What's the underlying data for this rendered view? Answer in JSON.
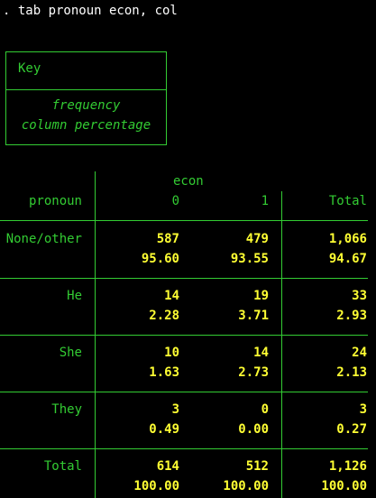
{
  "command": ". tab pronoun econ, col",
  "key": {
    "title": "Key",
    "line1": "frequency",
    "line2": "column percentage"
  },
  "table": {
    "col_var": "econ",
    "row_var": "pronoun",
    "col_headers": [
      "0",
      "1",
      "Total"
    ],
    "rows": [
      {
        "label": "None/other",
        "freq": [
          "587",
          "479",
          "1,066"
        ],
        "pct": [
          "95.60",
          "93.55",
          "94.67"
        ]
      },
      {
        "label": "He",
        "freq": [
          "14",
          "19",
          "33"
        ],
        "pct": [
          "2.28",
          "3.71",
          "2.93"
        ]
      },
      {
        "label": "She",
        "freq": [
          "10",
          "14",
          "24"
        ],
        "pct": [
          "1.63",
          "2.73",
          "2.13"
        ]
      },
      {
        "label": "They",
        "freq": [
          "3",
          "0",
          "3"
        ],
        "pct": [
          "0.49",
          "0.00",
          "0.27"
        ]
      },
      {
        "label": "Total",
        "freq": [
          "614",
          "512",
          "1,126"
        ],
        "pct": [
          "100.00",
          "100.00",
          "100.00"
        ]
      }
    ]
  },
  "colors": {
    "background": "#000000",
    "label_green": "#33cc33",
    "value_yellow": "#ffff33",
    "command_white": "#ffffff"
  }
}
